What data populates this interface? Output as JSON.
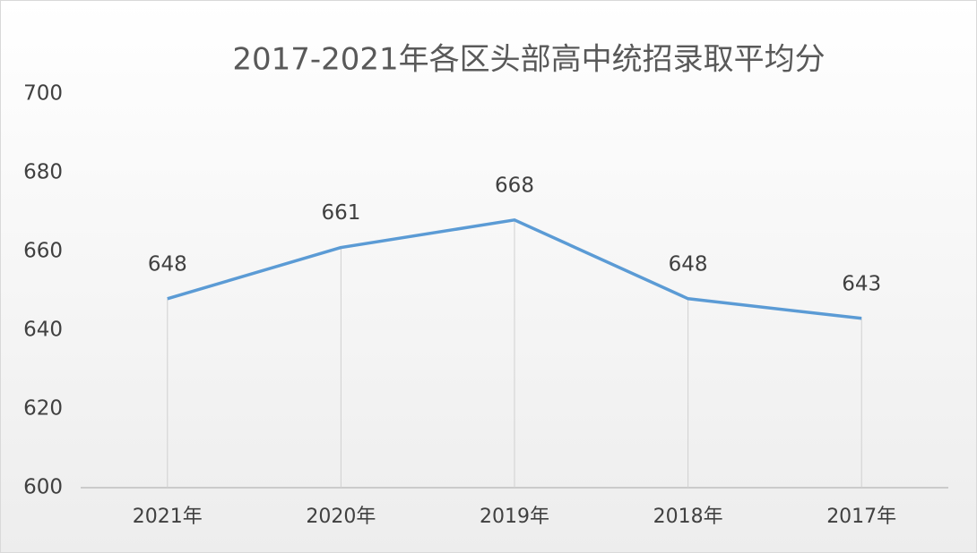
{
  "chart_data": {
    "type": "line",
    "title": "2017-2021年各区头部高中统招录取平均分",
    "categories": [
      "2021年",
      "2020年",
      "2019年",
      "2018年",
      "2017年"
    ],
    "values": [
      648,
      661,
      668,
      648,
      643
    ],
    "color": "#5b9bd5",
    "ylim": [
      600,
      700
    ],
    "yticks": [
      600,
      620,
      640,
      660,
      680,
      700
    ],
    "grid": false,
    "drop_lines": true
  }
}
